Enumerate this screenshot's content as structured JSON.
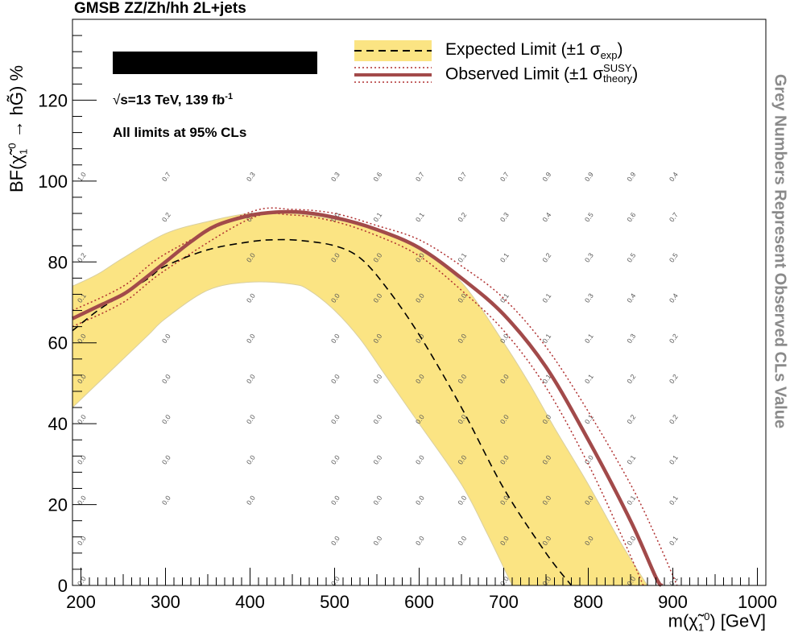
{
  "title": "GMSB ZZ/Zh/hh 2L+jets",
  "side_note": "Grey Numbers Represent Observed CLs Value",
  "info": {
    "energy_suffix": "s=13 TeV, 139 fb",
    "energy_exp": "-1",
    "cl_text": "All limits at 95% CLs"
  },
  "legend": {
    "expected_main": "Expected Limit (±1 σ",
    "expected_sub": "exp",
    "expected_close": ")",
    "observed_main": "Observed Limit (±1 σ",
    "observed_sup": "SUSY",
    "observed_sub": "theory",
    "observed_close": ")"
  },
  "colors": {
    "band": "#fbe483",
    "band_edge": "#d9cfa0",
    "observed": "#a24a4a",
    "dotted": "#b03030",
    "expected": "#000000",
    "grey_numbers": "#555555"
  },
  "chart_data": {
    "type": "line",
    "xlabel_prefix": "m(",
    "xlabel_suffix": ") [GeV]",
    "ylabel_prefix": "BF(",
    "ylabel_suffix": ") %",
    "xlim": [
      190,
      1010
    ],
    "ylim": [
      0,
      140
    ],
    "xticks": [
      200,
      300,
      400,
      500,
      600,
      700,
      800,
      900,
      1000
    ],
    "yticks": [
      0,
      20,
      40,
      60,
      80,
      100,
      120
    ],
    "expected": [
      [
        190,
        63
      ],
      [
        220,
        68
      ],
      [
        250,
        72
      ],
      [
        280,
        76
      ],
      [
        300,
        79
      ],
      [
        350,
        83
      ],
      [
        400,
        85
      ],
      [
        430,
        85.5
      ],
      [
        460,
        85.3
      ],
      [
        500,
        84
      ],
      [
        530,
        81
      ],
      [
        560,
        74
      ],
      [
        600,
        62
      ],
      [
        650,
        44
      ],
      [
        700,
        24
      ],
      [
        750,
        8
      ],
      [
        780,
        0
      ]
    ],
    "expected_band_upper": [
      [
        190,
        74
      ],
      [
        220,
        77
      ],
      [
        250,
        81
      ],
      [
        300,
        87
      ],
      [
        350,
        90
      ],
      [
        400,
        92
      ],
      [
        450,
        92
      ],
      [
        500,
        90.5
      ],
      [
        550,
        88
      ],
      [
        600,
        83
      ],
      [
        650,
        75
      ],
      [
        700,
        60
      ],
      [
        730,
        50
      ],
      [
        760,
        39
      ],
      [
        800,
        25
      ],
      [
        840,
        10
      ],
      [
        870,
        0
      ]
    ],
    "expected_band_lower": [
      [
        190,
        44
      ],
      [
        220,
        50
      ],
      [
        250,
        56
      ],
      [
        280,
        62
      ],
      [
        300,
        66
      ],
      [
        350,
        73
      ],
      [
        400,
        75
      ],
      [
        450,
        74.5
      ],
      [
        470,
        73
      ],
      [
        500,
        68
      ],
      [
        530,
        61
      ],
      [
        560,
        52
      ],
      [
        600,
        40
      ],
      [
        650,
        25
      ],
      [
        680,
        13
      ],
      [
        710,
        0
      ]
    ],
    "observed": [
      [
        190,
        66
      ],
      [
        220,
        69
      ],
      [
        250,
        72
      ],
      [
        270,
        75
      ],
      [
        300,
        80
      ],
      [
        330,
        85
      ],
      [
        360,
        89
      ],
      [
        400,
        91.5
      ],
      [
        430,
        92.3
      ],
      [
        460,
        92.3
      ],
      [
        500,
        91
      ],
      [
        550,
        88
      ],
      [
        600,
        83.5
      ],
      [
        650,
        76
      ],
      [
        700,
        67
      ],
      [
        750,
        54
      ],
      [
        800,
        36
      ],
      [
        850,
        16
      ],
      [
        880,
        2
      ],
      [
        887,
        0
      ]
    ],
    "observed_upper": [
      [
        190,
        68
      ],
      [
        250,
        74
      ],
      [
        300,
        82
      ],
      [
        400,
        92.3
      ],
      [
        450,
        93
      ],
      [
        500,
        92
      ],
      [
        550,
        89
      ],
      [
        600,
        85.5
      ],
      [
        650,
        79
      ],
      [
        700,
        71
      ],
      [
        750,
        59
      ],
      [
        800,
        43
      ],
      [
        850,
        25
      ],
      [
        880,
        12
      ],
      [
        905,
        0
      ]
    ],
    "observed_lower": [
      [
        190,
        64
      ],
      [
        250,
        70
      ],
      [
        300,
        78
      ],
      [
        400,
        90.7
      ],
      [
        450,
        91.6
      ],
      [
        500,
        90
      ],
      [
        550,
        86.5
      ],
      [
        600,
        81.5
      ],
      [
        650,
        73
      ],
      [
        700,
        63
      ],
      [
        750,
        49
      ],
      [
        800,
        30
      ],
      [
        840,
        12
      ],
      [
        865,
        0
      ]
    ],
    "cls_grid": {
      "columns": [
        {
          "x": 200,
          "values": [
            "0.0",
            "0.0",
            "0.0",
            "0.0",
            "0.0",
            "0.0",
            "0.0",
            "0.1",
            "0.2",
            null,
            "1.0"
          ]
        },
        {
          "x": 300,
          "values": [
            null,
            null,
            "0.0",
            "0.0",
            "0.0",
            "0.0",
            "0.0",
            null,
            null,
            "0.2",
            "0.7"
          ]
        },
        {
          "x": 400,
          "values": [
            null,
            null,
            "0.0",
            "0.0",
            "0.0",
            "0.0",
            "0.0",
            "0.0",
            "0.0",
            "0.0",
            "0.3"
          ]
        },
        {
          "x": 500,
          "values": [
            "0.0",
            "0.0",
            "0.0",
            "0.0",
            "0.0",
            "0.0",
            "0.0",
            "0.0",
            "0.0",
            "0.0",
            "0.3"
          ]
        },
        {
          "x": 550,
          "values": [
            null,
            "0.0",
            "0.0",
            "0.0",
            "0.0",
            "0.0",
            "0.0",
            "0.0",
            "0.0",
            "0.1",
            "0.6"
          ]
        },
        {
          "x": 600,
          "values": [
            null,
            "0.0",
            "0.0",
            "0.0",
            "0.0",
            "0.0",
            "0.0",
            "0.0",
            "0.0",
            "0.1",
            "0.7"
          ]
        },
        {
          "x": 650,
          "values": [
            null,
            "0.0",
            "0.0",
            "0.0",
            "0.0",
            "0.0",
            "0.0",
            "0.0",
            "0.1",
            "0.2",
            "0.7"
          ]
        },
        {
          "x": 700,
          "values": [
            "0.0",
            "0.0",
            "0.0",
            "0.0",
            "0.0",
            "0.0",
            "0.0",
            "0.1",
            "0.1",
            "0.3",
            "0.7"
          ]
        },
        {
          "x": 750,
          "values": [
            "0.0",
            "0.0",
            "0.0",
            "0.0",
            "0.0",
            "0.1",
            "0.1",
            "0.1",
            "0.2",
            "0.4",
            "0.9"
          ]
        },
        {
          "x": 800,
          "values": [
            null,
            "0.0",
            "0.0",
            "0.0",
            "0.1",
            "0.1",
            "0.1",
            "0.3",
            "0.3",
            "0.5",
            "0.9"
          ]
        },
        {
          "x": 850,
          "values": [
            "0.0",
            "0.0",
            "0.1",
            "0.1",
            "0.2",
            "0.2",
            "0.3",
            "0.4",
            "0.5",
            "0.6",
            "0.9"
          ]
        },
        {
          "x": 900,
          "values": [
            "0.1",
            "0.1",
            "0.1",
            "0.1",
            "0.2",
            "0.2",
            "0.2",
            "0.4",
            "0.5",
            "0.7",
            "0.4"
          ]
        }
      ],
      "bf_values": [
        0,
        10,
        20,
        30,
        40,
        50,
        60,
        70,
        80,
        90,
        100
      ]
    }
  }
}
